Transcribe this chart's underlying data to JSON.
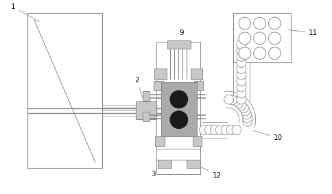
{
  "bg_color": "#ffffff",
  "line_color": "#888888",
  "dark_color": "#1a1a1a",
  "light_gray": "#c8c8c8",
  "mid_gray": "#aaaaaa",
  "figsize": [
    4.84,
    2.83
  ],
  "dpi": 100
}
